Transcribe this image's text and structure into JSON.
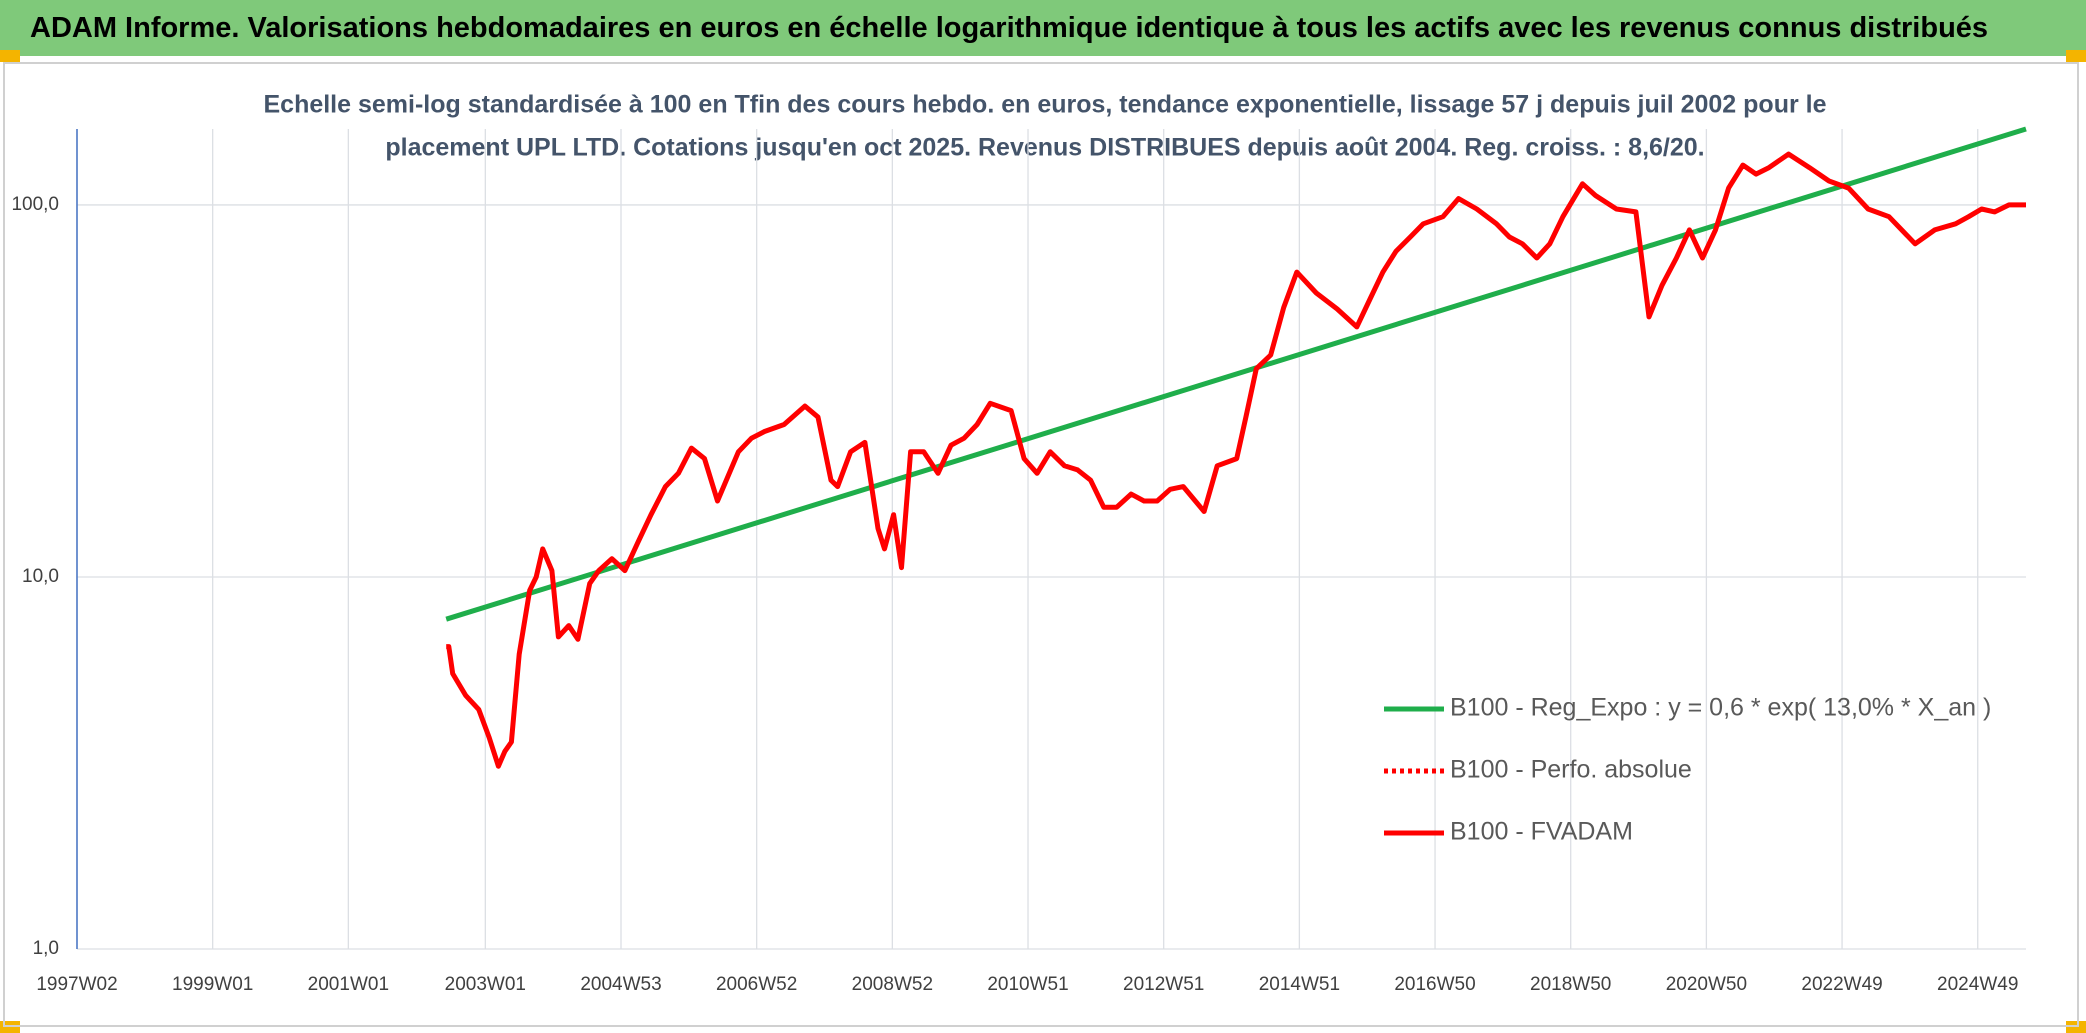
{
  "chart_data": {
    "type": "line",
    "title": "ADAM Informe. Valorisations hebdomadaires en euros en échelle logarithmique identique à tous les actifs avec les revenus connus distribués",
    "subtitle": [
      "Echelle semi-log standardisée à 100 en Tfin des cours hebdo. en euros, tendance exponentielle, lissage 57 j depuis juil 2002 pour le",
      "placement UPL LTD. Cotations jusqu'en oct 2025. Revenus DISTRIBUES depuis août 2004. Reg. croiss. : 8,6/20."
    ],
    "log_scale": true,
    "grid": true,
    "ylim": [
      1,
      160
    ],
    "yticks": [
      {
        "value": 1,
        "label": "1,0"
      },
      {
        "value": 10,
        "label": "10,0"
      },
      {
        "value": 100,
        "label": "100,0"
      }
    ],
    "xlim": [
      0,
      1494
    ],
    "xticks": [
      {
        "value": 0,
        "label": "1997W02"
      },
      {
        "value": 104,
        "label": "1999W01"
      },
      {
        "value": 208,
        "label": "2001W01"
      },
      {
        "value": 313,
        "label": "2003W01"
      },
      {
        "value": 417,
        "label": "2004W53"
      },
      {
        "value": 521,
        "label": "2006W52"
      },
      {
        "value": 625,
        "label": "2008W52"
      },
      {
        "value": 729,
        "label": "2010W51"
      },
      {
        "value": 833,
        "label": "2012W51"
      },
      {
        "value": 937,
        "label": "2014W51"
      },
      {
        "value": 1041,
        "label": "2016W50"
      },
      {
        "value": 1145,
        "label": "2018W50"
      },
      {
        "value": 1249,
        "label": "2020W50"
      },
      {
        "value": 1353,
        "label": "2022W49"
      },
      {
        "value": 1457,
        "label": "2024W49"
      }
    ],
    "series": [
      {
        "name": "B100 - Reg_Expo : y = 0,6 * exp( 13,0% *  X_an )",
        "color": "#1fae4b",
        "dashed": false,
        "x": [
          283,
          1494
        ],
        "values": [
          7.7,
          160
        ]
      },
      {
        "name": "B100 - Perfo. absolue",
        "color": "#ff0000",
        "dashed": true,
        "x": [],
        "values": []
      },
      {
        "name": "B100 - FVADAM",
        "color": "#ff0000",
        "dashed": false,
        "x": [
          283,
          285,
          288,
          298,
          308,
          316,
          323,
          328,
          333,
          339,
          347,
          352,
          357,
          364,
          369,
          377,
          384,
          393,
          400,
          410,
          420,
          430,
          440,
          451,
          461,
          471,
          481,
          491,
          507,
          517,
          527,
          542,
          558,
          568,
          578,
          583,
          593,
          604,
          614,
          619,
          626,
          632,
          639,
          649,
          660,
          670,
          680,
          690,
          700,
          716,
          726,
          736,
          746,
          757,
          767,
          777,
          787,
          797,
          808,
          818,
          828,
          838,
          848,
          864,
          874,
          889,
          896,
          904,
          915,
          925,
          935,
          950,
          966,
          981,
          991,
          1001,
          1011,
          1022,
          1032,
          1047,
          1059,
          1073,
          1088,
          1098,
          1108,
          1119,
          1129,
          1139,
          1154,
          1164,
          1180,
          1195,
          1205,
          1215,
          1226,
          1236,
          1246,
          1256,
          1266,
          1277,
          1287,
          1297,
          1312,
          1328,
          1343,
          1358,
          1373,
          1389,
          1409,
          1424,
          1440,
          1450,
          1460,
          1470,
          1481,
          1494
        ],
        "values": [
          6.5,
          6.5,
          5.5,
          4.8,
          4.4,
          3.7,
          3.1,
          3.4,
          3.6,
          6.2,
          9.2,
          10,
          11.9,
          10.4,
          6.9,
          7.4,
          6.8,
          9.6,
          10.4,
          11.2,
          10.4,
          12.4,
          14.7,
          17.5,
          19,
          22.2,
          20.8,
          16,
          21.7,
          23.6,
          24.6,
          25.7,
          28.8,
          26.9,
          18.2,
          17.5,
          21.7,
          23,
          13.5,
          11.9,
          14.7,
          10.6,
          21.7,
          21.7,
          19,
          22.6,
          23.6,
          25.7,
          29.3,
          28,
          20.8,
          19,
          21.7,
          19.9,
          19.4,
          18.2,
          15.4,
          15.4,
          16.7,
          16,
          16,
          17.2,
          17.5,
          15,
          19.9,
          20.8,
          26.9,
          36.3,
          39.5,
          53,
          66,
          58,
          52.5,
          47,
          55.7,
          66,
          75,
          82,
          89,
          93,
          104,
          97.5,
          89,
          82,
          78.6,
          72,
          78.6,
          93,
          114,
          106,
          97.5,
          95.8,
          50,
          60.8,
          72,
          85.7,
          72,
          85.7,
          111,
          128,
          121,
          126,
          137,
          126,
          116,
          111,
          97.5,
          93,
          78.6,
          85.7,
          89,
          93,
          97.5,
          95.8,
          100,
          100
        ]
      }
    ]
  }
}
